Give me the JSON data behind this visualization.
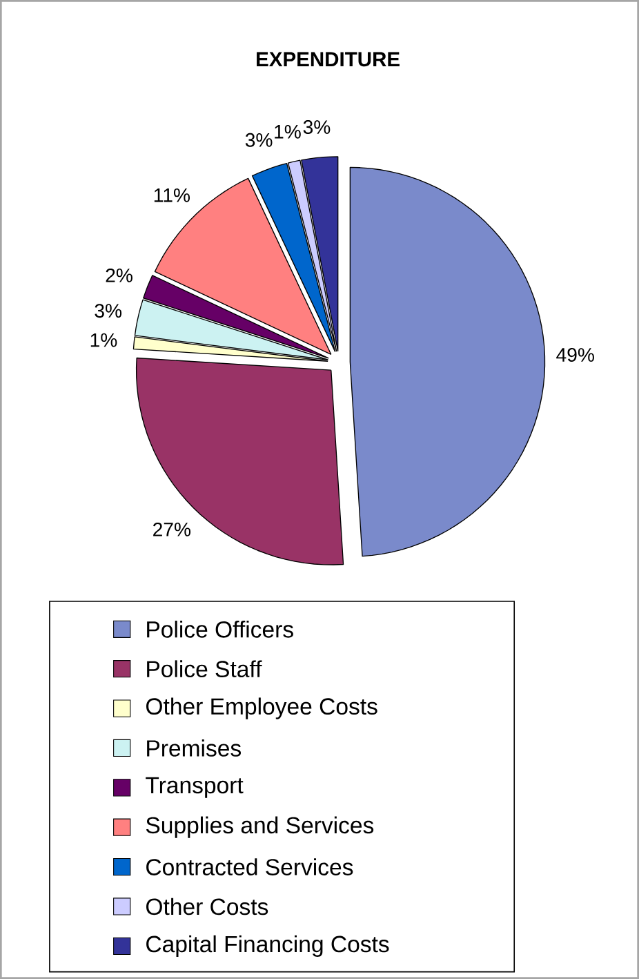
{
  "chart_data": {
    "type": "pie",
    "title": "EXPENDITURE",
    "categories": [
      "Police Officers",
      "Police Staff",
      "Other Employee Costs",
      "Premises",
      "Transport",
      "Supplies and Services",
      "Contracted Services",
      "Other Costs",
      "Capital Financing Costs"
    ],
    "values": [
      49,
      27,
      1,
      3,
      2,
      11,
      3,
      1,
      3
    ],
    "value_labels": [
      "49%",
      "27%",
      "1%",
      "3%",
      "2%",
      "11%",
      "3%",
      "1%",
      "3%"
    ],
    "colors": [
      "#7a8acb",
      "#993366",
      "#ffffcc",
      "#ccf2f2",
      "#660066",
      "#ff8080",
      "#0066cc",
      "#ccccff",
      "#333399"
    ],
    "legend": "bottom"
  }
}
